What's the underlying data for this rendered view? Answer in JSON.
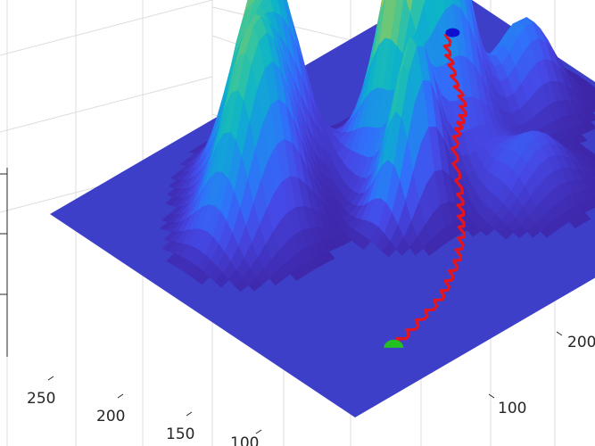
{
  "chart_data": {
    "type": "surface",
    "title": "",
    "xlabel": "",
    "ylabel": "",
    "zlabel": "",
    "grid": true,
    "colormap": "parula",
    "colors": {
      "path": "#e8141c",
      "start_marker": "#1010d0",
      "goal_marker": "#22c020",
      "floor": "#3d3fc8"
    },
    "x_ticks": [
      {
        "value": 100,
        "label": "100"
      },
      {
        "value": 150,
        "label": "150"
      },
      {
        "value": 200,
        "label": "200"
      },
      {
        "value": 250,
        "label": "250"
      }
    ],
    "y_ticks": [
      {
        "value": 100,
        "label": "100"
      },
      {
        "value": 200,
        "label": "200"
      }
    ],
    "peaks": [
      {
        "x": 190,
        "y": 170,
        "height": 1.0,
        "spread": 22
      },
      {
        "x": 110,
        "y": 225,
        "height": 0.62,
        "spread": 20
      },
      {
        "x": 75,
        "y": 190,
        "height": 0.6,
        "spread": 20
      },
      {
        "x": 150,
        "y": 130,
        "height": 0.5,
        "spread": 14
      },
      {
        "x": 260,
        "y": 160,
        "height": 0.28,
        "spread": 18
      },
      {
        "x": 215,
        "y": 95,
        "height": 0.17,
        "spread": 20
      }
    ],
    "path": [
      [
        280,
        260
      ],
      [
        272,
        252
      ],
      [
        266,
        244
      ],
      [
        262,
        236
      ],
      [
        256,
        226
      ],
      [
        250,
        216
      ],
      [
        246,
        206
      ],
      [
        240,
        196
      ],
      [
        232,
        186
      ],
      [
        224,
        178
      ],
      [
        216,
        170
      ],
      [
        208,
        162
      ],
      [
        200,
        154
      ],
      [
        194,
        146
      ],
      [
        188,
        136
      ],
      [
        182,
        126
      ],
      [
        176,
        118
      ],
      [
        170,
        110
      ],
      [
        164,
        102
      ],
      [
        158,
        94
      ],
      [
        150,
        86
      ],
      [
        142,
        78
      ],
      [
        134,
        72
      ],
      [
        126,
        66
      ],
      [
        118,
        60
      ],
      [
        110,
        55
      ],
      [
        100,
        51
      ],
      [
        90,
        48
      ],
      [
        80,
        44
      ],
      [
        70,
        41
      ],
      [
        62,
        40
      ]
    ],
    "start": [
      280,
      260
    ],
    "goal": [
      62,
      40
    ]
  }
}
